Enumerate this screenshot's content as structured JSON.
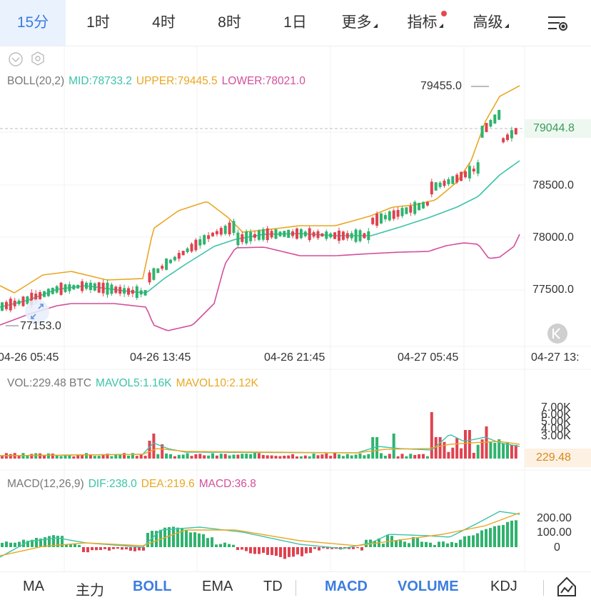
{
  "tabs": [
    {
      "label": "15分",
      "active": true
    },
    {
      "label": "1时"
    },
    {
      "label": "4时"
    },
    {
      "label": "8时"
    },
    {
      "label": "1日"
    },
    {
      "label": "更多",
      "dropdown": true
    },
    {
      "label": "指标",
      "dropdown": true,
      "badge": true
    },
    {
      "label": "高级",
      "dropdown": true
    }
  ],
  "header_icons": {
    "settings": "chart-settings-icon",
    "collapse": "chevron-down-circle-icon",
    "gear": "gear-icon"
  },
  "boll": {
    "title": "BOLL(20,2)",
    "mid": "MID:78733.2",
    "upper": "UPPER:79445.5",
    "lower": "LOWER:78021.0"
  },
  "price_axis": [
    "78500.0",
    "78000.0",
    "77500.0"
  ],
  "current_price": "79044.8",
  "high_marker": "79455.0",
  "low_marker": "77153.0",
  "time_axis": [
    "04-26 05:45",
    "04-26 13:45",
    "04-26 21:45",
    "04-27 05:45",
    "04-27 13:"
  ],
  "vol": {
    "title": "VOL:229.48 BTC",
    "mavol5": "MAVOL5:1.16K",
    "mavol10": "MAVOL10:2.12K",
    "axis": [
      "7.00K",
      "6.00K",
      "5.00K",
      "4.00K",
      "3.00K"
    ],
    "current": "229.48"
  },
  "macd": {
    "title": "MACD(12,26,9)",
    "dif": "DIF:238.0",
    "dea": "DEA:219.6",
    "macd": "MACD:36.8",
    "axis": [
      "200.00",
      "100.00",
      "0"
    ]
  },
  "bottom_tabs": [
    {
      "label": "MA"
    },
    {
      "label": "主力"
    },
    {
      "label": "BOLL",
      "active": true
    },
    {
      "label": "EMA"
    },
    {
      "label": "TD"
    },
    {
      "label": "MACD",
      "active": true
    },
    {
      "label": "VOLUME",
      "active": true
    },
    {
      "label": "KDJ"
    }
  ],
  "colors": {
    "up": "#2fb36e",
    "down": "#e0424f",
    "mid": "#3cc3a8",
    "upper": "#e9a723",
    "lower": "#d44f9b",
    "accent": "#3b7de0"
  }
}
